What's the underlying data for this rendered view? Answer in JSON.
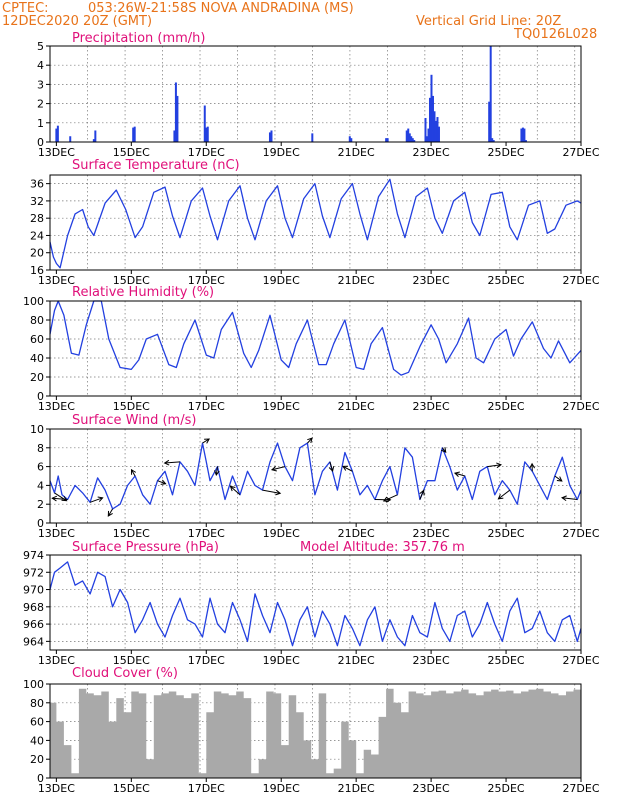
{
  "header": {
    "source": "CPTEC:",
    "location": "053:26W-21:58S  NOVA ANDRADINA (MS)",
    "run": "12DEC2020 20Z (GMT)",
    "grid_note": "Vertical Grid Line: 20Z",
    "code": "TQ0126L028"
  },
  "colors": {
    "header": "#e8731a",
    "panel_title": "#e0107a",
    "series": "#2340e0",
    "cloud": "#a9a9a9"
  },
  "chart_data": [
    {
      "id": "precip",
      "type": "bar",
      "title": "Precipitation (mm/h)",
      "ylim": [
        0,
        5
      ],
      "yticks": [
        0,
        1,
        2,
        3,
        4,
        5
      ],
      "xlabels": [
        "13DEC",
        "15DEC",
        "17DEC",
        "19DEC",
        "21DEC",
        "23DEC",
        "25DEC",
        "27DEC"
      ],
      "day_start": 12.83,
      "day_end": 27.0,
      "x": [
        13.0,
        13.04,
        13.37,
        14.0,
        14.04,
        15.05,
        15.09,
        16.15,
        16.19,
        16.23,
        16.96,
        17.0,
        17.04,
        18.7,
        18.74,
        19.83,
        20.83,
        20.87,
        21.8,
        21.84,
        22.35,
        22.39,
        22.43,
        22.47,
        22.51,
        22.55,
        22.85,
        22.89,
        22.93,
        22.97,
        23.01,
        23.05,
        23.09,
        23.13,
        23.17,
        23.21,
        24.55,
        24.59,
        24.63,
        24.67,
        25.41,
        25.45,
        25.49,
        25.53
      ],
      "values": [
        0.7,
        0.85,
        0.3,
        0.15,
        0.6,
        0.75,
        0.8,
        0.6,
        3.1,
        2.4,
        1.9,
        0.75,
        0.8,
        0.5,
        0.6,
        0.45,
        0.3,
        0.2,
        0.2,
        0.2,
        0.6,
        0.7,
        0.45,
        0.3,
        0.2,
        0.1,
        1.25,
        0.3,
        0.7,
        2.3,
        3.5,
        2.4,
        1.6,
        1.1,
        1.3,
        0.8,
        2.1,
        5.0,
        0.2,
        0.1,
        0.7,
        0.75,
        0.7,
        0.1
      ]
    },
    {
      "id": "temp",
      "type": "line",
      "title": "Surface Temperature (nC)",
      "ylim": [
        16,
        38
      ],
      "yticks": [
        16,
        20,
        24,
        28,
        32,
        36
      ],
      "xlabels": [
        "13DEC",
        "15DEC",
        "17DEC",
        "19DEC",
        "21DEC",
        "23DEC",
        "25DEC",
        "27DEC"
      ],
      "x": [
        12.83,
        12.92,
        13.0,
        13.1,
        13.3,
        13.5,
        13.7,
        13.85,
        14.0,
        14.3,
        14.6,
        14.85,
        15.1,
        15.3,
        15.6,
        15.9,
        16.1,
        16.3,
        16.6,
        16.9,
        17.1,
        17.3,
        17.6,
        17.9,
        18.1,
        18.3,
        18.6,
        18.9,
        19.1,
        19.3,
        19.6,
        19.9,
        20.1,
        20.3,
        20.6,
        20.9,
        21.1,
        21.3,
        21.6,
        21.9,
        22.1,
        22.3,
        22.6,
        22.9,
        23.1,
        23.3,
        23.6,
        23.9,
        24.1,
        24.3,
        24.6,
        24.9,
        25.1,
        25.3,
        25.6,
        25.9,
        26.1,
        26.3,
        26.6,
        26.9,
        27.0
      ],
      "values": [
        22.5,
        19.0,
        17.5,
        16.5,
        24.0,
        29.0,
        30.0,
        26.0,
        24.0,
        31.5,
        34.5,
        30.0,
        23.5,
        26.0,
        34.0,
        35.2,
        28.5,
        23.5,
        32.0,
        35.0,
        28.5,
        23.0,
        32.0,
        35.5,
        28.0,
        23.0,
        32.0,
        35.5,
        28.0,
        23.5,
        32.5,
        36.0,
        28.5,
        23.5,
        32.5,
        36.0,
        29.0,
        23.0,
        33.0,
        37.0,
        29.0,
        23.5,
        33.0,
        35.0,
        28.0,
        24.5,
        32.0,
        34.0,
        27.0,
        24.0,
        33.5,
        34.0,
        26.0,
        23.0,
        31.0,
        32.0,
        24.5,
        25.5,
        31.0,
        32.0,
        31.5
      ]
    },
    {
      "id": "humidity",
      "type": "line",
      "title": "Relative Humidity (%)",
      "ylim": [
        0,
        100
      ],
      "yticks": [
        0,
        20,
        40,
        60,
        80,
        100
      ],
      "xlabels": [
        "13DEC",
        "15DEC",
        "17DEC",
        "19DEC",
        "21DEC",
        "23DEC",
        "25DEC",
        "27DEC"
      ],
      "x": [
        12.83,
        12.95,
        13.05,
        13.2,
        13.4,
        13.6,
        13.8,
        14.0,
        14.2,
        14.4,
        14.7,
        15.0,
        15.2,
        15.4,
        15.7,
        16.0,
        16.2,
        16.4,
        16.7,
        17.0,
        17.2,
        17.4,
        17.7,
        18.0,
        18.2,
        18.4,
        18.7,
        19.0,
        19.2,
        19.4,
        19.7,
        20.0,
        20.2,
        20.4,
        20.7,
        21.0,
        21.2,
        21.4,
        21.7,
        22.0,
        22.2,
        22.4,
        22.7,
        23.0,
        23.2,
        23.4,
        23.7,
        24.0,
        24.2,
        24.4,
        24.7,
        25.0,
        25.2,
        25.4,
        25.7,
        26.0,
        26.2,
        26.4,
        26.7,
        27.0
      ],
      "values": [
        65,
        90,
        100,
        85,
        45,
        43,
        75,
        100,
        100,
        60,
        30,
        28,
        38,
        60,
        65,
        33,
        30,
        55,
        80,
        43,
        40,
        70,
        88,
        45,
        30,
        48,
        85,
        38,
        30,
        55,
        80,
        33,
        33,
        55,
        80,
        30,
        28,
        55,
        72,
        28,
        22,
        25,
        52,
        75,
        60,
        35,
        55,
        82,
        40,
        35,
        60,
        70,
        42,
        60,
        78,
        50,
        40,
        58,
        35,
        48
      ]
    },
    {
      "id": "wind",
      "type": "line",
      "title": "Surface Wind (m/s)",
      "ylim": [
        0,
        10
      ],
      "yticks": [
        0,
        2,
        4,
        6,
        8,
        10
      ],
      "xlabels": [
        "13DEC",
        "15DEC",
        "17DEC",
        "19DEC",
        "21DEC",
        "23DEC",
        "25DEC",
        "27DEC"
      ],
      "x": [
        12.83,
        12.95,
        13.05,
        13.15,
        13.3,
        13.5,
        13.7,
        13.9,
        14.1,
        14.3,
        14.5,
        14.7,
        14.9,
        15.1,
        15.3,
        15.5,
        15.7,
        15.9,
        16.1,
        16.3,
        16.5,
        16.7,
        16.9,
        17.0,
        17.1,
        17.3,
        17.5,
        17.7,
        17.9,
        18.1,
        18.3,
        18.5,
        18.7,
        18.9,
        19.1,
        19.3,
        19.5,
        19.7,
        19.9,
        20.1,
        20.3,
        20.5,
        20.7,
        20.9,
        21.1,
        21.3,
        21.5,
        21.7,
        21.9,
        22.1,
        22.3,
        22.5,
        22.7,
        22.9,
        23.1,
        23.3,
        23.5,
        23.7,
        23.9,
        24.1,
        24.3,
        24.5,
        24.7,
        24.9,
        25.1,
        25.3,
        25.5,
        25.7,
        25.9,
        26.1,
        26.3,
        26.5,
        26.7,
        26.9,
        27.0
      ],
      "values": [
        4.5,
        3.2,
        5.0,
        3.0,
        2.5,
        4.0,
        3.2,
        2.2,
        4.8,
        3.5,
        1.5,
        2.0,
        4.0,
        5.0,
        3.0,
        2.0,
        4.5,
        5.5,
        3.0,
        6.5,
        5.5,
        4.0,
        8.5,
        6.5,
        4.5,
        6.0,
        2.5,
        5.0,
        3.0,
        5.5,
        4.0,
        3.5,
        6.5,
        8.5,
        6.0,
        4.5,
        8.0,
        8.5,
        3.0,
        5.5,
        6.5,
        3.5,
        7.5,
        5.5,
        3.0,
        4.0,
        2.5,
        4.5,
        6.0,
        3.0,
        8.0,
        7.0,
        2.5,
        4.5,
        4.5,
        8.0,
        6.0,
        3.5,
        5.0,
        2.5,
        5.5,
        6.0,
        3.0,
        4.5,
        3.5,
        2.0,
        6.5,
        5.5,
        4.0,
        2.5,
        5.0,
        7.0,
        4.0,
        2.5,
        3.5
      ]
    },
    {
      "id": "pressure",
      "type": "line",
      "title": "Surface Pressure (hPa)",
      "subtitle": "Model Altitude: 357.76 m",
      "ylim": [
        963,
        974
      ],
      "yticks": [
        964,
        966,
        968,
        970,
        972,
        974
      ],
      "xlabels": [
        "13DEC",
        "15DEC",
        "17DEC",
        "19DEC",
        "21DEC",
        "23DEC",
        "25DEC",
        "27DEC"
      ],
      "x": [
        12.83,
        12.95,
        13.1,
        13.3,
        13.5,
        13.7,
        13.9,
        14.1,
        14.3,
        14.5,
        14.7,
        14.9,
        15.1,
        15.3,
        15.5,
        15.7,
        15.9,
        16.1,
        16.3,
        16.5,
        16.7,
        16.9,
        17.1,
        17.3,
        17.5,
        17.7,
        17.9,
        18.1,
        18.3,
        18.5,
        18.7,
        18.9,
        19.1,
        19.3,
        19.5,
        19.7,
        19.9,
        20.1,
        20.3,
        20.5,
        20.7,
        20.9,
        21.1,
        21.3,
        21.5,
        21.7,
        21.9,
        22.1,
        22.3,
        22.5,
        22.7,
        22.9,
        23.1,
        23.3,
        23.5,
        23.7,
        23.9,
        24.1,
        24.3,
        24.5,
        24.7,
        24.9,
        25.1,
        25.3,
        25.5,
        25.7,
        25.9,
        26.1,
        26.3,
        26.5,
        26.7,
        26.9,
        27.0
      ],
      "values": [
        970.0,
        972.0,
        972.5,
        973.2,
        970.5,
        971.0,
        969.5,
        972.0,
        971.5,
        968.0,
        970.0,
        968.5,
        965.0,
        966.5,
        968.5,
        966.0,
        964.5,
        967.0,
        969.0,
        966.5,
        966.0,
        964.5,
        969.0,
        966.0,
        965.0,
        968.5,
        966.5,
        964.0,
        969.5,
        967.0,
        965.0,
        968.5,
        966.5,
        963.5,
        966.5,
        968.0,
        964.5,
        967.5,
        966.0,
        963.5,
        967.0,
        965.5,
        963.5,
        966.5,
        968.0,
        964.0,
        966.5,
        964.5,
        963.5,
        967.0,
        965.0,
        964.5,
        968.5,
        965.5,
        964.0,
        967.0,
        967.5,
        964.5,
        966.0,
        968.5,
        966.0,
        964.0,
        967.5,
        969.0,
        965.0,
        965.5,
        967.5,
        965.0,
        964.0,
        966.5,
        967.0,
        964.0,
        965.5
      ]
    },
    {
      "id": "cloud",
      "type": "area",
      "title": "Cloud Cover (%)",
      "ylim": [
        0,
        100
      ],
      "yticks": [
        0,
        20,
        40,
        60,
        80,
        100
      ],
      "xlabels": [
        "13DEC",
        "15DEC",
        "17DEC",
        "19DEC",
        "21DEC",
        "23DEC",
        "25DEC",
        "27DEC"
      ],
      "x": [
        12.83,
        13.0,
        13.2,
        13.4,
        13.6,
        13.8,
        14.0,
        14.2,
        14.4,
        14.6,
        14.8,
        15.0,
        15.2,
        15.4,
        15.6,
        15.8,
        16.0,
        16.2,
        16.4,
        16.6,
        16.8,
        17.0,
        17.2,
        17.4,
        17.6,
        17.8,
        18.0,
        18.2,
        18.4,
        18.6,
        18.8,
        19.0,
        19.2,
        19.4,
        19.6,
        19.8,
        20.0,
        20.2,
        20.4,
        20.6,
        20.8,
        21.0,
        21.2,
        21.4,
        21.6,
        21.8,
        22.0,
        22.2,
        22.4,
        22.6,
        22.8,
        23.0,
        23.2,
        23.4,
        23.6,
        23.8,
        24.0,
        24.2,
        24.4,
        24.6,
        24.8,
        25.0,
        25.2,
        25.4,
        25.6,
        25.8,
        26.0,
        26.2,
        26.4,
        26.6,
        26.8,
        27.0
      ],
      "values": [
        80,
        60,
        35,
        5,
        95,
        90,
        88,
        92,
        60,
        85,
        70,
        92,
        90,
        20,
        88,
        90,
        92,
        88,
        85,
        90,
        5,
        70,
        92,
        90,
        88,
        92,
        85,
        5,
        20,
        92,
        90,
        35,
        88,
        70,
        40,
        20,
        90,
        5,
        10,
        60,
        40,
        5,
        30,
        25,
        65,
        95,
        80,
        70,
        92,
        90,
        88,
        92,
        93,
        90,
        92,
        94,
        90,
        88,
        92,
        94,
        92,
        93,
        90,
        92,
        94,
        95,
        92,
        90,
        88,
        92,
        94,
        93
      ]
    }
  ]
}
